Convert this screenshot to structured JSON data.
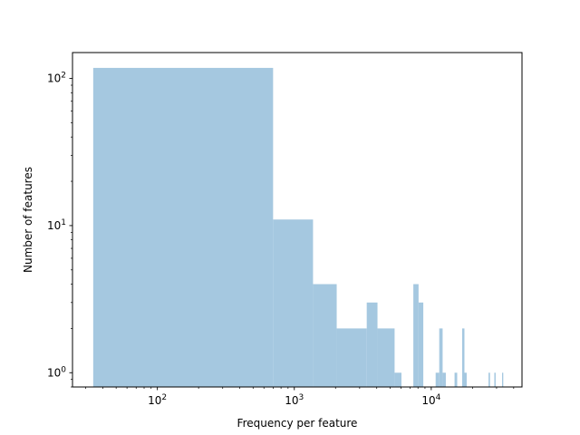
{
  "chart_data": {
    "type": "bar",
    "title": "",
    "xlabel": "Frequency per feature",
    "ylabel": "Number of features",
    "x_scale": "log",
    "y_scale": "log",
    "xlim": [
      24,
      46000
    ],
    "ylim": [
      0.8,
      150
    ],
    "bar_color": "#a5c8e0",
    "grid": false,
    "x_ticks": [
      {
        "value": 100,
        "base": "10",
        "exp": "2"
      },
      {
        "value": 1000,
        "base": "10",
        "exp": "3"
      },
      {
        "value": 10000,
        "base": "10",
        "exp": "4"
      }
    ],
    "y_ticks": [
      {
        "value": 1,
        "base": "10",
        "exp": "0"
      },
      {
        "value": 10,
        "base": "10",
        "exp": "1"
      },
      {
        "value": 100,
        "base": "10",
        "exp": "2"
      }
    ],
    "bins": [
      {
        "x0": 34,
        "x1": 700,
        "count": 118
      },
      {
        "x0": 700,
        "x1": 1370,
        "count": 11
      },
      {
        "x0": 1370,
        "x1": 2040,
        "count": 4
      },
      {
        "x0": 2040,
        "x1": 3380,
        "count": 2
      },
      {
        "x0": 3380,
        "x1": 4050,
        "count": 3
      },
      {
        "x0": 4050,
        "x1": 5400,
        "count": 2
      },
      {
        "x0": 5400,
        "x1": 6060,
        "count": 1
      },
      {
        "x0": 7400,
        "x1": 8080,
        "count": 4
      },
      {
        "x0": 8080,
        "x1": 8750,
        "count": 3
      },
      {
        "x0": 10770,
        "x1": 11440,
        "count": 1
      },
      {
        "x0": 11440,
        "x1": 12110,
        "count": 2
      },
      {
        "x0": 12110,
        "x1": 12780,
        "count": 1
      },
      {
        "x0": 14800,
        "x1": 15470,
        "count": 1
      },
      {
        "x0": 16810,
        "x1": 17480,
        "count": 2
      },
      {
        "x0": 17480,
        "x1": 18150,
        "count": 1
      },
      {
        "x0": 26200,
        "x1": 26870,
        "count": 1
      },
      {
        "x0": 28880,
        "x1": 29550,
        "count": 1
      },
      {
        "x0": 32900,
        "x1": 33570,
        "count": 1
      }
    ]
  }
}
